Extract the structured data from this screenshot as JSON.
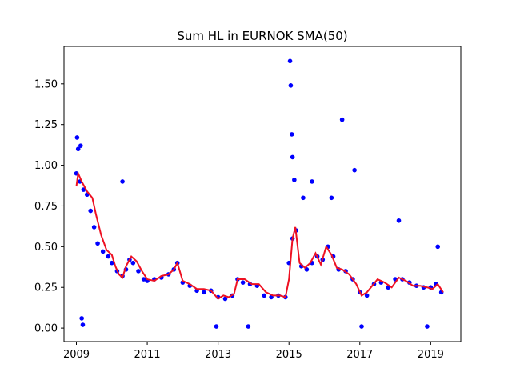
{
  "chart_data": {
    "type": "scatter",
    "title": "Sum HL in EURNOK SMA(50)",
    "xlabel": "",
    "ylabel": "",
    "xlim": [
      2008.65,
      2019.85
    ],
    "ylim": [
      -0.083,
      1.73
    ],
    "x_ticks": [
      2009,
      2011,
      2013,
      2015,
      2017,
      2019
    ],
    "x_tick_labels": [
      "2009",
      "2011",
      "2013",
      "2015",
      "2017",
      "2019"
    ],
    "y_ticks": [
      0.0,
      0.25,
      0.5,
      0.75,
      1.0,
      1.25,
      1.5
    ],
    "y_tick_labels": [
      "0.00",
      "0.25",
      "0.50",
      "0.75",
      "1.00",
      "1.25",
      "1.50"
    ],
    "grid": false,
    "colors": {
      "scatter": "#0000ff",
      "sma": "#ee1122"
    },
    "series": [
      {
        "kind": "scatter",
        "x": [
          2009.0,
          2009.1,
          2009.2,
          2009.3,
          2009.4,
          2009.5,
          2009.6,
          2009.75,
          2009.9,
          2010.0,
          2010.15,
          2010.3,
          2010.4,
          2010.5,
          2010.6,
          2010.75,
          2010.9,
          2011.0,
          2011.2,
          2011.4,
          2011.6,
          2011.75,
          2011.85,
          2012.0,
          2012.2,
          2012.4,
          2012.6,
          2012.8,
          2013.0,
          2013.2,
          2013.4,
          2013.55,
          2013.7,
          2013.9,
          2014.1,
          2014.3,
          2014.5,
          2014.7,
          2014.9,
          2015.0,
          2015.1,
          2015.2,
          2015.35,
          2015.5,
          2015.65,
          2015.8,
          2015.95,
          2016.1,
          2016.25,
          2016.4,
          2016.6,
          2016.8,
          2017.0,
          2017.2,
          2017.4,
          2017.6,
          2017.8,
          2018.0,
          2018.2,
          2018.4,
          2018.6,
          2018.8,
          2019.0,
          2019.15,
          2019.3,
          2015.03,
          2015.05,
          2015.08,
          2015.1,
          2015.15,
          2009.02,
          2009.05,
          2009.12,
          2010.3,
          2015.65,
          2016.2,
          2016.5,
          2016.85,
          2009.15,
          2009.18,
          2012.95,
          2013.85,
          2018.1,
          2017.05,
          2018.9,
          2019.2,
          2015.4
        ],
        "y": [
          0.95,
          0.9,
          0.85,
          0.82,
          0.72,
          0.62,
          0.52,
          0.47,
          0.44,
          0.4,
          0.35,
          0.32,
          0.36,
          0.42,
          0.4,
          0.35,
          0.3,
          0.29,
          0.3,
          0.31,
          0.33,
          0.36,
          0.4,
          0.28,
          0.26,
          0.23,
          0.22,
          0.23,
          0.19,
          0.18,
          0.2,
          0.3,
          0.28,
          0.27,
          0.26,
          0.2,
          0.19,
          0.2,
          0.19,
          0.4,
          0.55,
          0.6,
          0.38,
          0.36,
          0.4,
          0.44,
          0.42,
          0.5,
          0.44,
          0.36,
          0.35,
          0.3,
          0.22,
          0.2,
          0.27,
          0.28,
          0.25,
          0.3,
          0.3,
          0.28,
          0.26,
          0.25,
          0.25,
          0.27,
          0.22,
          1.64,
          1.49,
          1.19,
          1.05,
          0.91,
          1.17,
          1.1,
          1.12,
          0.9,
          0.9,
          0.8,
          1.28,
          0.97,
          0.06,
          0.02,
          0.01,
          0.01,
          0.66,
          0.01,
          0.01,
          0.5,
          0.8
        ]
      },
      {
        "kind": "line",
        "name": "",
        "x": [
          2009.0,
          2009.05,
          2009.15,
          2009.3,
          2009.45,
          2009.55,
          2009.7,
          2009.85,
          2010.0,
          2010.1,
          2010.2,
          2010.3,
          2010.4,
          2010.55,
          2010.7,
          2010.85,
          2011.0,
          2011.2,
          2011.4,
          2011.6,
          2011.75,
          2011.85,
          2012.0,
          2012.2,
          2012.4,
          2012.6,
          2012.8,
          2013.0,
          2013.15,
          2013.3,
          2013.45,
          2013.55,
          2013.75,
          2013.95,
          2014.15,
          2014.35,
          2014.55,
          2014.75,
          2014.9,
          2015.0,
          2015.1,
          2015.18,
          2015.3,
          2015.45,
          2015.6,
          2015.75,
          2015.9,
          2016.05,
          2016.2,
          2016.35,
          2016.5,
          2016.7,
          2016.9,
          2017.05,
          2017.2,
          2017.35,
          2017.5,
          2017.7,
          2017.9,
          2018.1,
          2018.3,
          2018.5,
          2018.7,
          2018.9,
          2019.05,
          2019.2,
          2019.35
        ],
        "y": [
          0.87,
          0.95,
          0.9,
          0.84,
          0.8,
          0.7,
          0.57,
          0.48,
          0.45,
          0.38,
          0.33,
          0.31,
          0.38,
          0.44,
          0.41,
          0.35,
          0.3,
          0.29,
          0.32,
          0.33,
          0.36,
          0.4,
          0.29,
          0.27,
          0.24,
          0.24,
          0.23,
          0.18,
          0.2,
          0.19,
          0.21,
          0.3,
          0.3,
          0.27,
          0.27,
          0.22,
          0.2,
          0.2,
          0.19,
          0.3,
          0.55,
          0.62,
          0.4,
          0.37,
          0.4,
          0.46,
          0.39,
          0.5,
          0.45,
          0.37,
          0.36,
          0.33,
          0.27,
          0.2,
          0.22,
          0.26,
          0.3,
          0.28,
          0.25,
          0.31,
          0.29,
          0.26,
          0.26,
          0.25,
          0.24,
          0.27,
          0.22
        ]
      }
    ]
  }
}
